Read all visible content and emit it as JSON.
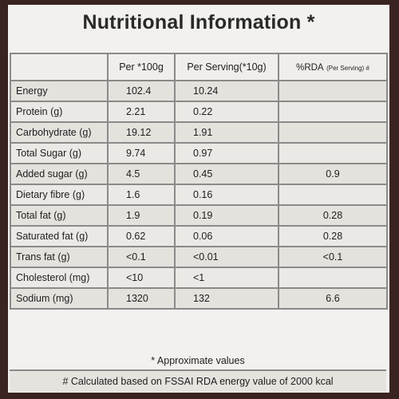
{
  "title": "Nutritional Information *",
  "headers": {
    "per100g": "Per *100g",
    "per_serving": "Per Serving(*10g)",
    "rda_main": "%RDA",
    "rda_small": "(Per Serving) #"
  },
  "rows": [
    {
      "name": "Energy",
      "per100g": "102.4",
      "per_serving": "10.24",
      "rda": ""
    },
    {
      "name": "Protein (g)",
      "per100g": "2.21",
      "per_serving": "0.22",
      "rda": ""
    },
    {
      "name": "Carbohydrate (g)",
      "per100g": "19.12",
      "per_serving": "1.91",
      "rda": ""
    },
    {
      "name": "Total Sugar (g)",
      "per100g": "9.74",
      "per_serving": "0.97",
      "rda": ""
    },
    {
      "name": "Added sugar (g)",
      "per100g": "4.5",
      "per_serving": "0.45",
      "rda": "0.9"
    },
    {
      "name": "Dietary fibre (g)",
      "per100g": "1.6",
      "per_serving": "0.16",
      "rda": ""
    },
    {
      "name": "Total fat (g)",
      "per100g": "1.9",
      "per_serving": "0.19",
      "rda": "0.28"
    },
    {
      "name": "Saturated fat (g)",
      "per100g": "0.62",
      "per_serving": "0.06",
      "rda": "0.28"
    },
    {
      "name": "Trans fat (g)",
      "per100g": "<0.1",
      "per_serving": "<0.01",
      "rda": "<0.1"
    },
    {
      "name": "Cholesterol (mg)",
      "per100g": "<10",
      "per_serving": "<1",
      "rda": ""
    },
    {
      "name": "Sodium (mg)",
      "per100g": "1320",
      "per_serving": "132",
      "rda": "6.6"
    }
  ],
  "footnote_approx": "* Approximate values",
  "footnote_rda": "# Calculated based on FSSAI RDA energy value of 2000 kcal",
  "colors": {
    "background_frame": "#3a2420",
    "panel": "#f3f1ee",
    "grid_lines": "#8a8a8a"
  }
}
